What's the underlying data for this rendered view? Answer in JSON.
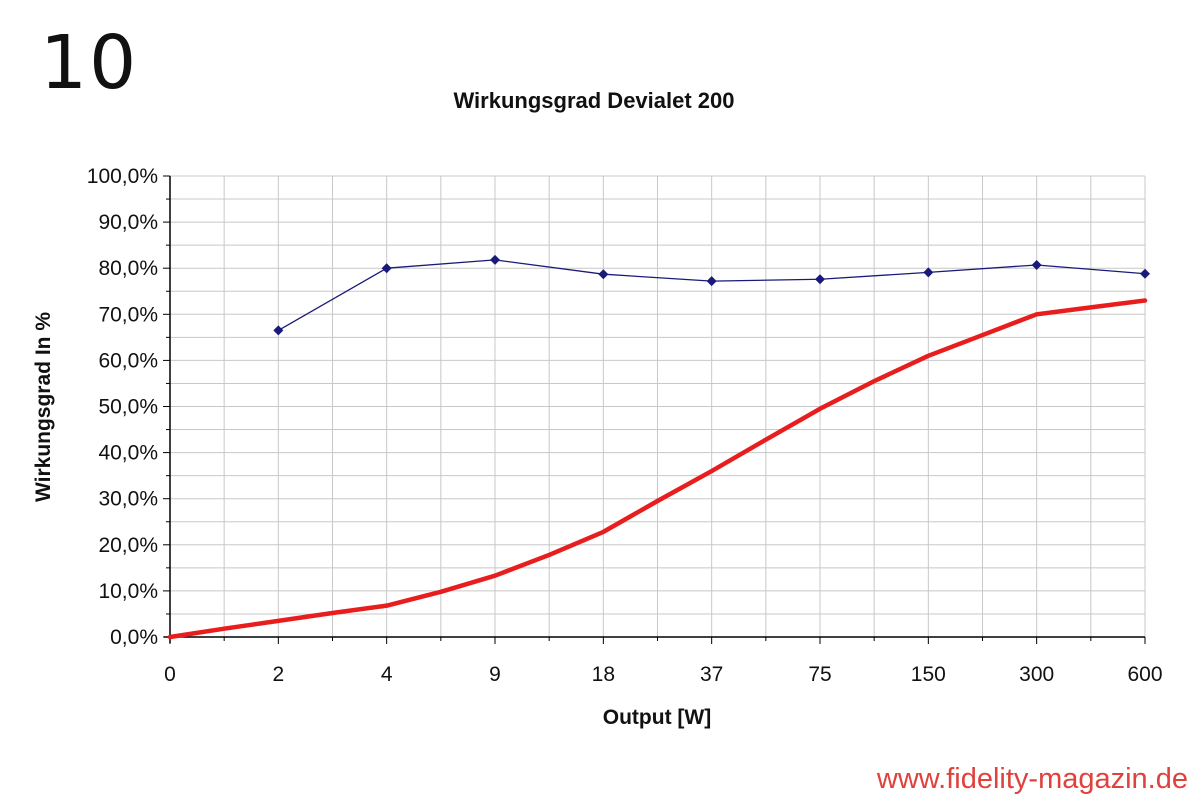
{
  "figure_number": "10",
  "watermark": "www.fidelity-magazin.de",
  "chart_data": {
    "type": "line",
    "title": "Wirkungsgrad Devialet 200",
    "xlabel": "Output [W]",
    "ylabel": "Wirkungsgrad In %",
    "categories": [
      "0",
      "2",
      "4",
      "9",
      "18",
      "37",
      "75",
      "150",
      "300",
      "600"
    ],
    "y_ticks": [
      "0,0%",
      "10,0%",
      "20,0%",
      "30,0%",
      "40,0%",
      "50,0%",
      "60,0%",
      "70,0%",
      "80,0%",
      "90,0%",
      "100,0%"
    ],
    "ylim": [
      0,
      100
    ],
    "grid": true,
    "series": [
      {
        "color": "#1a1a7a",
        "marker": "diamond",
        "values": [
          null,
          66.5,
          80.0,
          81.8,
          78.7,
          77.2,
          77.6,
          79.1,
          80.7,
          78.8
        ]
      },
      {
        "color": "#e81e1e",
        "marker": "none",
        "points": [
          [
            0,
            0.0
          ],
          [
            0.5,
            1.8
          ],
          [
            1,
            3.5
          ],
          [
            1.5,
            5.2
          ],
          [
            2,
            6.8
          ],
          [
            2.5,
            9.8
          ],
          [
            3,
            13.3
          ],
          [
            3.5,
            17.8
          ],
          [
            4,
            22.8
          ],
          [
            4.5,
            29.5
          ],
          [
            5,
            36.0
          ],
          [
            5.5,
            42.8
          ],
          [
            6,
            49.5
          ],
          [
            6.5,
            55.5
          ],
          [
            7,
            61.0
          ],
          [
            7.5,
            65.5
          ],
          [
            8,
            70.0
          ],
          [
            8.5,
            71.5
          ],
          [
            9,
            73.0
          ]
        ]
      }
    ]
  }
}
